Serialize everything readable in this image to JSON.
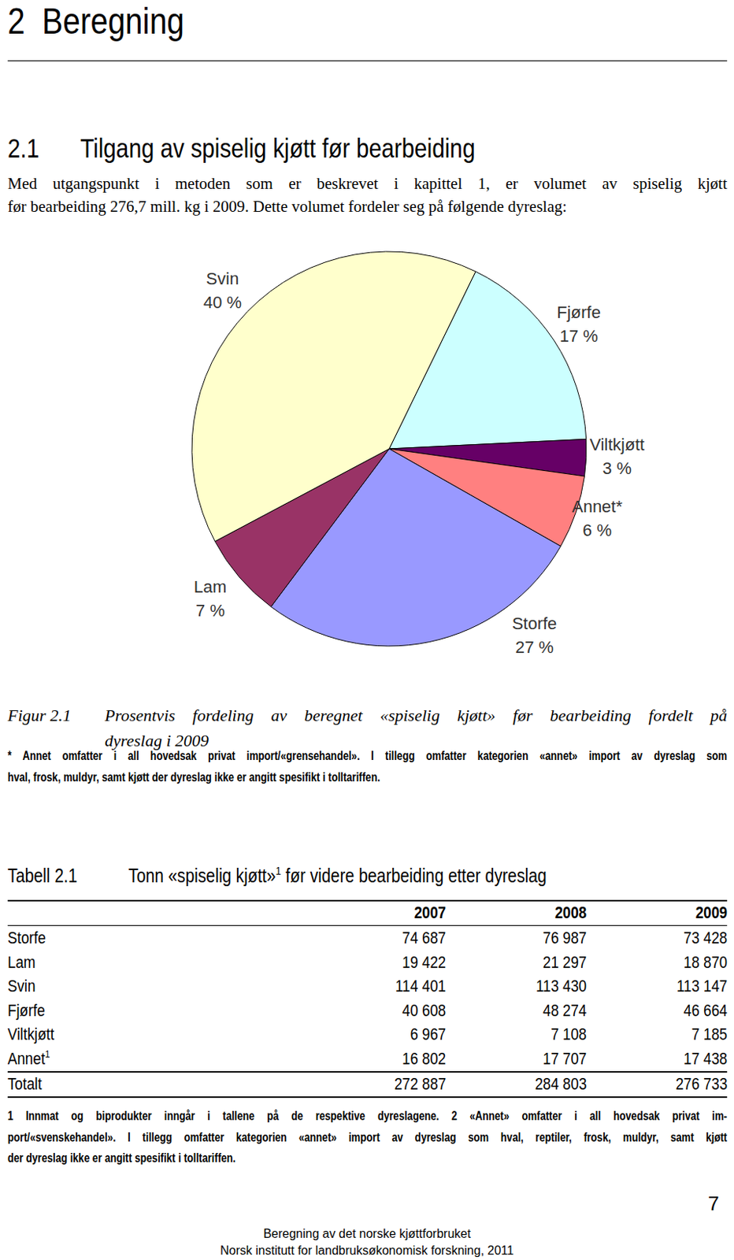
{
  "header": {
    "number": "2",
    "title": "Beregning"
  },
  "section": {
    "number": "2.1",
    "title": "Tilgang av spiselig kjøtt før bearbeiding"
  },
  "paragraph": [
    "Med utgangspunkt i metoden som er beskrevet i kapittel 1, er volumet av spiselig kjøtt",
    "før bearbeiding 276,7 mill. kg i 2009. Dette volumet fordeler seg på følgende dyreslag:"
  ],
  "chart_data": {
    "type": "pie",
    "categories": [
      "Fjørfe",
      "Viltkjøtt",
      "Annet*",
      "Storfe",
      "Lam",
      "Svin"
    ],
    "values": [
      17,
      3,
      6,
      27,
      7,
      40
    ],
    "value_labels": [
      "17 %",
      "3 %",
      "6 %",
      "27 %",
      "7 %",
      "40 %"
    ],
    "colors": [
      "#ccffff",
      "#660066",
      "#ff8080",
      "#9999ff",
      "#993366",
      "#ffffcc"
    ],
    "data_labels": true
  },
  "figure_caption": {
    "label": "Figur 2.1",
    "lines": [
      "Prosentvis fordeling av beregnet «spiselig kjøtt» før bearbeiding fordelt på",
      "dyreslag i 2009"
    ]
  },
  "figure_note": [
    "* Annet omfatter i all hovedsak privat import/«grensehandel». I tillegg omfatter kategorien «annet» import av dyreslag som",
    "hval, frosk, muldyr, samt kjøtt der dyreslag ikke er angitt spesifikt i tolltariffen."
  ],
  "table": {
    "label": "Tabell 2.1",
    "title": "Tonn «spiselig kjøtt»",
    "title_sup": "1",
    "title_rest": " før videre bearbeiding etter dyreslag",
    "columns": [
      "2007",
      "2008",
      "2009"
    ],
    "rows": [
      {
        "label": "Storfe",
        "values": [
          "74 687",
          "76 987",
          "73 428"
        ]
      },
      {
        "label": "Lam",
        "values": [
          "19 422",
          "21 297",
          "18 870"
        ]
      },
      {
        "label": "Svin",
        "values": [
          "114 401",
          "113 430",
          "113 147"
        ]
      },
      {
        "label": "Fjørfe",
        "values": [
          "40 608",
          "48 274",
          "46 664"
        ]
      },
      {
        "label": "Viltkjøtt",
        "values": [
          "6 967",
          "7 108",
          "7 185"
        ]
      },
      {
        "label": "Annet",
        "sup": "1",
        "values": [
          "16 802",
          "17 707",
          "17 438"
        ]
      }
    ],
    "total": {
      "label": "Totalt",
      "values": [
        "272 887",
        "284 803",
        "276 733"
      ]
    }
  },
  "table_note": [
    "1 Innmat og biprodukter inngår i tallene på de respektive dyreslagene. 2 «Annet» omfatter i all hovedsak privat im-",
    "port/«svenskehandel». I tillegg omfatter kategorien «annet» import av dyreslag som hval, reptiler, frosk, muldyr, samt kjøtt",
    "der dyreslag ikke er angitt spesifikt i tolltariffen."
  ],
  "footer": {
    "lines": [
      "Beregning av det norske kjøttforbruket",
      "Norsk institutt for landbruksøkonomisk forskning, 2011"
    ],
    "page": "7"
  }
}
